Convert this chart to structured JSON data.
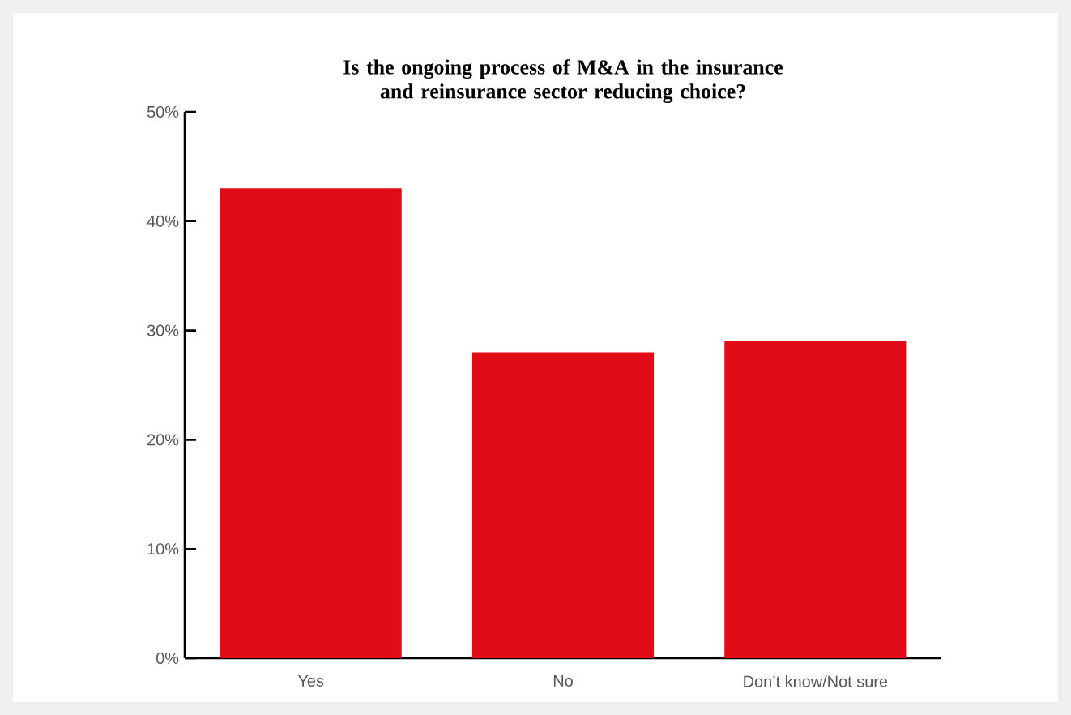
{
  "chart_data": {
    "type": "bar",
    "title": "Is the ongoing process of M&A in the insurance and reinsurance sector reducing choice?",
    "categories": [
      "Yes",
      "No",
      "Don’t know/Not sure"
    ],
    "values": [
      43,
      28,
      29
    ],
    "color": "#e20b18",
    "ylim": [
      0,
      50
    ],
    "yticks": [
      {
        "value": 0,
        "label": "0%"
      },
      {
        "value": 10,
        "label": "10%"
      },
      {
        "value": 20,
        "label": "20%"
      },
      {
        "value": 30,
        "label": "30%"
      },
      {
        "value": 40,
        "label": "40%"
      },
      {
        "value": 50,
        "label": "50%"
      }
    ]
  }
}
